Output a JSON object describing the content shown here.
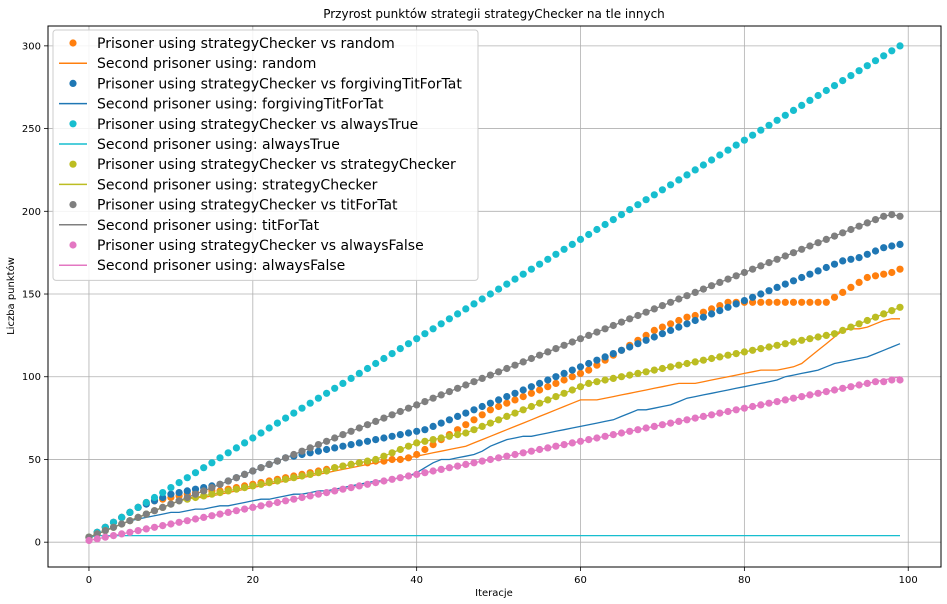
{
  "chart_data": {
    "type": "scatter",
    "title": "Przyrost punktów strategii strategyChecker na tle innych",
    "xlabel": "Iteracje",
    "ylabel": "Liczba punktów",
    "xlim": [
      -5,
      104
    ],
    "ylim": [
      -15,
      312
    ],
    "x_ticks": [
      0,
      20,
      40,
      60,
      80,
      100
    ],
    "y_ticks": [
      0,
      50,
      100,
      150,
      200,
      250,
      300
    ],
    "grid": true,
    "legend_position": "top-left",
    "x": "iterations 0 to 99",
    "series": [
      {
        "name": "Prisoner using strategyChecker vs random",
        "kind": "markers",
        "color": "#ff7f0e",
        "values": [
          3,
          6,
          9,
          12,
          15,
          18,
          21,
          24,
          25,
          26,
          27,
          28,
          29,
          30,
          31,
          31,
          31,
          32,
          33,
          34,
          35,
          36,
          37,
          38,
          39,
          40,
          41,
          42,
          43,
          44,
          45,
          46,
          47,
          48,
          48,
          49,
          49,
          50,
          50,
          51,
          53,
          56,
          59,
          62,
          65,
          68,
          71,
          74,
          77,
          80,
          82,
          84,
          86,
          88,
          90,
          92,
          94,
          96,
          98,
          100,
          102,
          104,
          107,
          110,
          113,
          116,
          119,
          122,
          125,
          128,
          130,
          132,
          134,
          136,
          137,
          139,
          141,
          143,
          145,
          145,
          145,
          145,
          145,
          145,
          145,
          145,
          145,
          145,
          145,
          145,
          145,
          148,
          151,
          154,
          157,
          160,
          161,
          162,
          163,
          165
        ]
      },
      {
        "name": "Second prisoner using: random",
        "kind": "line",
        "color": "#ff7f0e",
        "values": [
          3,
          5,
          7,
          9,
          11,
          13,
          15,
          17,
          19,
          21,
          23,
          25,
          27,
          27,
          27,
          28,
          29,
          30,
          31,
          32,
          33,
          34,
          35,
          36,
          37,
          38,
          39,
          40,
          41,
          42,
          43,
          44,
          45,
          46,
          47,
          48,
          49,
          50,
          50,
          51,
          52,
          53,
          54,
          55,
          56,
          57,
          58,
          60,
          62,
          64,
          66,
          68,
          70,
          72,
          74,
          76,
          78,
          80,
          82,
          84,
          86,
          86,
          86,
          87,
          88,
          89,
          90,
          91,
          92,
          93,
          94,
          95,
          96,
          96,
          96,
          97,
          98,
          99,
          100,
          101,
          102,
          103,
          104,
          104,
          104,
          105,
          106,
          108,
          112,
          116,
          120,
          124,
          128,
          129,
          129,
          130,
          132,
          134,
          135,
          135
        ]
      },
      {
        "name": "Prisoner using strategyChecker vs forgivingTitForTat",
        "kind": "markers",
        "color": "#1f77b4",
        "values": [
          3,
          6,
          9,
          12,
          15,
          18,
          21,
          23,
          25,
          27,
          29,
          30,
          31,
          32,
          33,
          34,
          35,
          37,
          39,
          41,
          43,
          45,
          47,
          49,
          51,
          52,
          53,
          54,
          55,
          56,
          57,
          58,
          59,
          60,
          61,
          62,
          63,
          64,
          65,
          66,
          67,
          68,
          70,
          72,
          74,
          76,
          78,
          80,
          82,
          84,
          86,
          88,
          90,
          92,
          94,
          96,
          98,
          100,
          102,
          104,
          106,
          108,
          110,
          112,
          114,
          116,
          118,
          120,
          122,
          124,
          126,
          128,
          130,
          132,
          134,
          136,
          138,
          140,
          142,
          144,
          146,
          148,
          150,
          152,
          154,
          156,
          158,
          160,
          162,
          164,
          166,
          168,
          170,
          171,
          172,
          174,
          176,
          178,
          179,
          180
        ]
      },
      {
        "name": "Second prisoner using: forgivingTitForTat",
        "kind": "line",
        "color": "#1f77b4",
        "values": [
          3,
          5,
          7,
          9,
          11,
          13,
          14,
          15,
          16,
          17,
          18,
          18,
          19,
          20,
          20,
          21,
          22,
          22,
          23,
          24,
          25,
          26,
          26,
          27,
          28,
          29,
          29,
          30,
          31,
          31,
          32,
          33,
          34,
          35,
          36,
          37,
          37,
          38,
          39,
          40,
          42,
          45,
          48,
          50,
          50,
          51,
          52,
          53,
          55,
          58,
          60,
          62,
          63,
          64,
          64,
          65,
          66,
          67,
          68,
          69,
          70,
          71,
          72,
          73,
          74,
          76,
          78,
          80,
          80,
          81,
          82,
          83,
          85,
          87,
          88,
          89,
          90,
          91,
          92,
          93,
          94,
          95,
          96,
          97,
          98,
          100,
          101,
          102,
          103,
          104,
          106,
          108,
          109,
          110,
          111,
          112,
          114,
          116,
          118,
          120
        ]
      },
      {
        "name": "Prisoner using strategyChecker vs alwaysTrue",
        "kind": "markers",
        "color": "#17becf",
        "values": [
          3,
          6,
          9,
          12,
          15,
          18,
          21,
          24,
          27,
          30,
          33,
          36,
          39,
          42,
          45,
          48,
          51,
          54,
          57,
          60,
          63,
          66,
          69,
          72,
          75,
          78,
          81,
          84,
          87,
          90,
          93,
          96,
          99,
          102,
          105,
          108,
          111,
          114,
          117,
          120,
          123,
          126,
          129,
          132,
          135,
          138,
          141,
          144,
          147,
          150,
          153,
          156,
          159,
          162,
          165,
          168,
          171,
          174,
          177,
          180,
          183,
          186,
          189,
          192,
          195,
          198,
          201,
          204,
          207,
          210,
          213,
          216,
          219,
          222,
          225,
          228,
          231,
          234,
          237,
          240,
          243,
          246,
          249,
          252,
          255,
          258,
          261,
          264,
          267,
          270,
          273,
          276,
          279,
          282,
          285,
          288,
          291,
          294,
          297,
          300
        ]
      },
      {
        "name": "Second prisoner using: alwaysTrue",
        "kind": "line",
        "color": "#17becf",
        "values": [
          3,
          4,
          4,
          4,
          4,
          4,
          4,
          4,
          4,
          4,
          4,
          4,
          4,
          4,
          4,
          4,
          4,
          4,
          4,
          4,
          4,
          4,
          4,
          4,
          4,
          4,
          4,
          4,
          4,
          4,
          4,
          4,
          4,
          4,
          4,
          4,
          4,
          4,
          4,
          4,
          4,
          4,
          4,
          4,
          4,
          4,
          4,
          4,
          4,
          4,
          4,
          4,
          4,
          4,
          4,
          4,
          4,
          4,
          4,
          4,
          4,
          4,
          4,
          4,
          4,
          4,
          4,
          4,
          4,
          4,
          4,
          4,
          4,
          4,
          4,
          4,
          4,
          4,
          4,
          4,
          4,
          4,
          4,
          4,
          4,
          4,
          4,
          4,
          4,
          4,
          4,
          4,
          4,
          4,
          4,
          4,
          4,
          4,
          4,
          4
        ]
      },
      {
        "name": "Prisoner using strategyChecker vs strategyChecker",
        "kind": "markers",
        "color": "#bcbd22",
        "values": [
          3,
          5,
          7,
          9,
          11,
          13,
          15,
          17,
          19,
          21,
          23,
          25,
          26,
          27,
          28,
          29,
          30,
          31,
          32,
          33,
          34,
          35,
          36,
          37,
          38,
          39,
          40,
          41,
          42,
          43,
          45,
          46,
          47,
          48,
          49,
          50,
          52,
          54,
          56,
          58,
          60,
          61,
          62,
          63,
          64,
          65,
          66,
          68,
          70,
          72,
          74,
          76,
          78,
          80,
          82,
          84,
          86,
          88,
          90,
          92,
          94,
          96,
          97,
          98,
          99,
          100,
          101,
          102,
          103,
          104,
          105,
          106,
          107,
          108,
          109,
          110,
          111,
          112,
          113,
          114,
          115,
          116,
          117,
          118,
          119,
          120,
          121,
          122,
          123,
          124,
          125,
          126,
          128,
          130,
          132,
          134,
          136,
          138,
          140,
          142
        ]
      },
      {
        "name": "Second prisoner using: strategyChecker",
        "kind": "line",
        "color": "#bcbd22",
        "values": [
          3,
          5,
          7,
          9,
          11,
          13,
          15,
          17,
          19,
          21,
          23,
          25,
          26,
          27,
          28,
          29,
          30,
          31,
          32,
          33,
          34,
          35,
          36,
          37,
          38,
          39,
          40,
          41,
          42,
          43,
          45,
          46,
          47,
          48,
          49,
          50,
          52,
          54,
          56,
          58,
          60,
          61,
          62,
          63,
          64,
          65,
          66,
          68,
          70,
          72,
          74,
          76,
          78,
          80,
          82,
          84,
          86,
          88,
          90,
          92,
          94,
          96,
          97,
          98,
          99,
          100,
          101,
          102,
          103,
          104,
          105,
          106,
          107,
          108,
          109,
          110,
          111,
          112,
          113,
          114,
          115,
          116,
          117,
          118,
          119,
          120,
          121,
          122,
          123,
          124,
          125,
          126,
          128,
          130,
          132,
          134,
          136,
          138,
          140,
          142
        ]
      },
      {
        "name": "Prisoner using strategyChecker vs titForTat",
        "kind": "markers",
        "color": "#7f7f7f",
        "values": [
          3,
          5,
          7,
          9,
          11,
          13,
          15,
          17,
          19,
          21,
          23,
          25,
          27,
          29,
          31,
          33,
          35,
          37,
          39,
          41,
          43,
          45,
          47,
          49,
          51,
          53,
          55,
          57,
          59,
          61,
          63,
          65,
          67,
          69,
          71,
          73,
          75,
          77,
          79,
          81,
          83,
          85,
          87,
          89,
          91,
          93,
          95,
          97,
          99,
          101,
          103,
          105,
          107,
          109,
          111,
          113,
          115,
          117,
          119,
          121,
          123,
          125,
          127,
          129,
          131,
          133,
          135,
          137,
          139,
          141,
          143,
          145,
          147,
          149,
          151,
          153,
          155,
          157,
          159,
          161,
          163,
          165,
          167,
          169,
          171,
          173,
          175,
          177,
          179,
          181,
          183,
          185,
          187,
          189,
          191,
          193,
          195,
          197,
          198,
          197
        ]
      },
      {
        "name": "Second prisoner using: titForTat",
        "kind": "line",
        "color": "#7f7f7f",
        "values": [
          3,
          5,
          7,
          9,
          11,
          13,
          15,
          17,
          19,
          21,
          23,
          25,
          27,
          29,
          31,
          33,
          35,
          37,
          39,
          41,
          43,
          45,
          47,
          49,
          51,
          53,
          55,
          57,
          59,
          61,
          63,
          65,
          67,
          69,
          71,
          73,
          75,
          77,
          79,
          81,
          83,
          85,
          87,
          89,
          91,
          93,
          95,
          97,
          99,
          101,
          103,
          105,
          107,
          109,
          111,
          113,
          115,
          117,
          119,
          121,
          123,
          125,
          127,
          129,
          131,
          133,
          135,
          137,
          139,
          141,
          143,
          145,
          147,
          149,
          151,
          153,
          155,
          157,
          159,
          161,
          163,
          165,
          167,
          169,
          171,
          173,
          175,
          177,
          179,
          181,
          183,
          185,
          187,
          189,
          191,
          193,
          195,
          197,
          198,
          197
        ]
      },
      {
        "name": "Prisoner using strategyChecker vs alwaysFalse",
        "kind": "markers",
        "color": "#e377c2",
        "values": [
          1,
          2,
          3,
          4,
          5,
          6,
          7,
          8,
          9,
          10,
          11,
          12,
          13,
          14,
          15,
          16,
          17,
          18,
          19,
          20,
          21,
          22,
          23,
          24,
          25,
          26,
          27,
          28,
          29,
          30,
          31,
          32,
          33,
          34,
          35,
          36,
          37,
          38,
          39,
          40,
          41,
          42,
          43,
          44,
          45,
          46,
          47,
          48,
          49,
          50,
          51,
          52,
          53,
          54,
          55,
          56,
          57,
          58,
          59,
          60,
          61,
          62,
          63,
          64,
          65,
          66,
          67,
          68,
          69,
          70,
          71,
          72,
          73,
          74,
          75,
          76,
          77,
          78,
          79,
          80,
          81,
          82,
          83,
          84,
          85,
          86,
          87,
          88,
          89,
          90,
          91,
          92,
          93,
          94,
          95,
          96,
          97,
          97,
          98,
          98
        ]
      },
      {
        "name": "Second prisoner using: alwaysFalse",
        "kind": "line",
        "color": "#e377c2",
        "values": [
          1,
          2,
          3,
          4,
          5,
          6,
          7,
          8,
          9,
          10,
          11,
          12,
          13,
          14,
          15,
          16,
          17,
          18,
          19,
          20,
          21,
          22,
          23,
          24,
          25,
          26,
          27,
          28,
          29,
          30,
          31,
          32,
          33,
          34,
          35,
          36,
          37,
          38,
          39,
          40,
          41,
          42,
          43,
          44,
          45,
          46,
          47,
          48,
          49,
          50,
          51,
          52,
          53,
          54,
          55,
          56,
          57,
          58,
          59,
          60,
          61,
          62,
          63,
          64,
          65,
          66,
          67,
          68,
          69,
          70,
          71,
          72,
          73,
          74,
          75,
          76,
          77,
          78,
          79,
          80,
          81,
          82,
          83,
          84,
          85,
          86,
          87,
          88,
          89,
          90,
          91,
          92,
          93,
          94,
          95,
          96,
          97,
          98,
          99,
          100
        ]
      }
    ]
  }
}
